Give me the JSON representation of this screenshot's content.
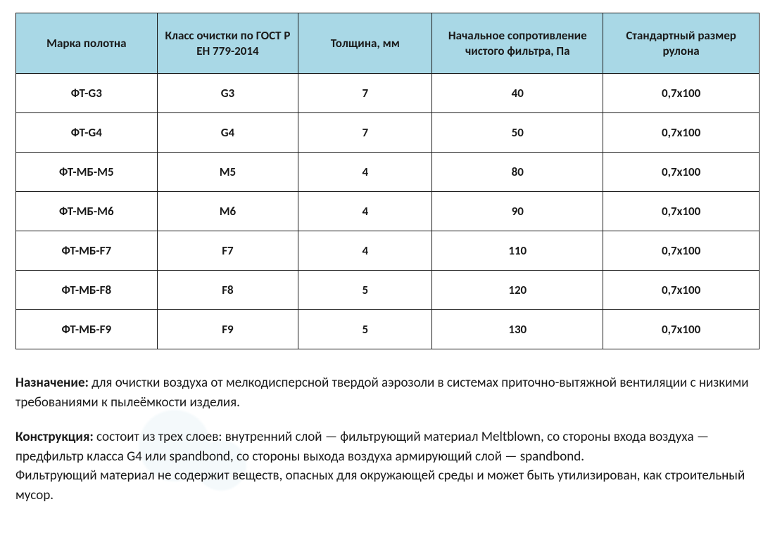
{
  "table": {
    "header_bg": "#a9d8e6",
    "border_color": "#1a1a1a",
    "columns": [
      {
        "label": "Марка полотна",
        "width": "19%"
      },
      {
        "label": "Класс очистки по ГОСТ Р ЕН 779-2014",
        "width": "19%"
      },
      {
        "label": "Толщина, мм",
        "width": "18%"
      },
      {
        "label": "Начальное сопротивление чистого фильтра, Па",
        "width": "23%"
      },
      {
        "label": "Стандартный размер рулона",
        "width": "21%"
      }
    ],
    "rows": [
      [
        "ФТ-G3",
        "G3",
        "7",
        "40",
        "0,7х100"
      ],
      [
        "ФТ-G4",
        "G4",
        "7",
        "50",
        "0,7х100"
      ],
      [
        "ФТ-МБ-М5",
        "M5",
        "4",
        "80",
        "0,7х100"
      ],
      [
        "ФТ-МБ-М6",
        "M6",
        "4",
        "90",
        "0,7х100"
      ],
      [
        "ФТ-МБ-F7",
        "F7",
        "4",
        "110",
        "0,7х100"
      ],
      [
        "ФТ-МБ-F8",
        "F8",
        "5",
        "120",
        "0,7х100"
      ],
      [
        "ФТ-МБ-F9",
        "F9",
        "5",
        "130",
        "0,7х100"
      ]
    ]
  },
  "description": {
    "purpose_label": "Назначение:",
    "purpose_text": " для очистки воздуха от мелкодисперсной твердой аэрозоли в системах приточно-вытяжной вентиляции с низкими требованиями к пылеёмкости изделия.",
    "construction_label": "Конструкция:",
    "construction_text": " состоит из трех слоев: внутренний слой — фильтрующий материал Meltblown, со стороны входа воздуха — предфильтр класса G4 или spandbond, со стороны выхода воздуха армирующий слой — spandbond.",
    "construction_text2": "Фильтрующий материал не содержит веществ, опасных для окружающей среды и может быть утилизирован, как строительный мусор."
  },
  "typography": {
    "body_font": "Calibri",
    "table_fontsize_pt": 13,
    "desc_fontsize_pt": 14,
    "text_color": "#1a1a1a"
  }
}
